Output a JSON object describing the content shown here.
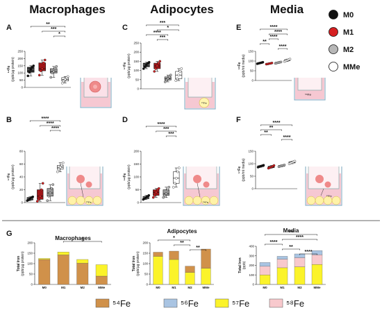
{
  "headers": {
    "col1": "Macrophages",
    "col2": "Adipocytes",
    "col3": "Media"
  },
  "panel_labels": [
    "A",
    "B",
    "C",
    "D",
    "E",
    "F",
    "G"
  ],
  "legend": {
    "items": [
      {
        "label": "M0",
        "color": "#111111"
      },
      {
        "label": "M1",
        "color": "#d62021"
      },
      {
        "label": "M2",
        "color": "#b7b7b7"
      },
      {
        "label": "MMe",
        "color": "#ffffff"
      }
    ]
  },
  "isotope_legend": {
    "items": [
      {
        "label": "⁵⁴Fe",
        "color": "#d0914a"
      },
      {
        "label": "⁵⁶Fe",
        "color": "#a9c4e2"
      },
      {
        "label": "⁵⁷Fe",
        "color": "#fbf32a"
      },
      {
        "label": "⁵⁸Fe",
        "color": "#f8c9cd"
      }
    ]
  },
  "schematic_labels": {
    "e_label": "⁵⁸Fe",
    "b_label": "⁵⁷Fe",
    "c_label": "⁵⁷Fe",
    "d_label": "⁵⁴Fe",
    "f_label": "⁵⁷Fe"
  },
  "chart_data": [
    {
      "id": "A",
      "type": "box",
      "ylabel": "⁵⁴Fe\n(ppb/µg protein)",
      "ylim": [
        0,
        250
      ],
      "yticks": [
        0,
        50,
        100,
        150,
        200,
        250
      ],
      "categories": [
        "M0",
        "M1",
        "M2",
        "MMe"
      ],
      "boxes": [
        {
          "min": 80,
          "q1": 105,
          "median": 125,
          "q3": 140,
          "max": 150,
          "color": "#111111"
        },
        {
          "min": 85,
          "q1": 115,
          "median": 130,
          "q3": 170,
          "max": 190,
          "color": "#d62021"
        },
        {
          "min": 70,
          "q1": 100,
          "median": 110,
          "q3": 130,
          "max": 145,
          "color": "#b7b7b7"
        },
        {
          "min": 30,
          "q1": 45,
          "median": 55,
          "q3": 68,
          "max": 75,
          "color": "#ffffff"
        }
      ],
      "significance": [
        {
          "from": 0,
          "to": 3,
          "label": "**"
        },
        {
          "from": 1,
          "to": 3,
          "label": "***"
        },
        {
          "from": 2,
          "to": 3,
          "label": "*"
        }
      ]
    },
    {
      "id": "B",
      "type": "box",
      "ylabel": "⁵⁷Fe\n(ppb/µg protein)",
      "ylim": [
        0,
        80
      ],
      "yticks": [
        0,
        20,
        40,
        60,
        80
      ],
      "categories": [
        "M0",
        "M1",
        "M2",
        "MMe"
      ],
      "boxes": [
        {
          "min": 3,
          "q1": 4,
          "median": 6,
          "q3": 8,
          "max": 9,
          "color": "#111111"
        },
        {
          "min": 2,
          "q1": 5,
          "median": 10,
          "q3": 20,
          "max": 30,
          "color": "#d62021"
        },
        {
          "min": 3,
          "q1": 10,
          "median": 15,
          "q3": 22,
          "max": 28,
          "color": "#b7b7b7"
        },
        {
          "min": 48,
          "q1": 52,
          "median": 55,
          "q3": 58,
          "max": 62,
          "color": "#ffffff"
        }
      ],
      "significance": [
        {
          "from": 0,
          "to": 3,
          "label": "****"
        },
        {
          "from": 1,
          "to": 3,
          "label": "****"
        },
        {
          "from": 2,
          "to": 3,
          "label": "****"
        }
      ]
    },
    {
      "id": "C",
      "type": "box",
      "ylabel": "⁵⁷Fe\n(ppb/µg protein)",
      "ylim": [
        0,
        250
      ],
      "yticks": [
        0,
        50,
        100,
        150,
        200,
        250
      ],
      "categories": [
        "M0",
        "M1",
        "M2",
        "MMe"
      ],
      "boxes": [
        {
          "min": 110,
          "q1": 120,
          "median": 130,
          "q3": 140,
          "max": 145,
          "color": "#111111"
        },
        {
          "min": 95,
          "q1": 110,
          "median": 125,
          "q3": 140,
          "max": 150,
          "color": "#d62021"
        },
        {
          "min": 38,
          "q1": 48,
          "median": 55,
          "q3": 65,
          "max": 75,
          "color": "#b7b7b7"
        },
        {
          "min": 45,
          "q1": 55,
          "median": 75,
          "q3": 95,
          "max": 110,
          "color": "#ffffff"
        }
      ],
      "significance": [
        {
          "from": 0,
          "to": 3,
          "label": "***"
        },
        {
          "from": 1,
          "to": 3,
          "label": "*"
        },
        {
          "from": 0,
          "to": 2,
          "label": "****"
        },
        {
          "from": 1,
          "to": 2,
          "label": "***"
        }
      ]
    },
    {
      "id": "D",
      "type": "box",
      "ylabel": "⁵⁴Fe\n(ppb/µg protein)",
      "ylim": [
        0,
        200
      ],
      "yticks": [
        0,
        50,
        100,
        150,
        200
      ],
      "categories": [
        "M0",
        "M1",
        "M2",
        "MMe"
      ],
      "boxes": [
        {
          "min": 12,
          "q1": 15,
          "median": 20,
          "q3": 24,
          "max": 28,
          "color": "#111111"
        },
        {
          "min": 20,
          "q1": 28,
          "median": 40,
          "q3": 50,
          "max": 55,
          "color": "#d62021"
        },
        {
          "min": 20,
          "q1": 28,
          "median": 35,
          "q3": 50,
          "max": 60,
          "color": "#b7b7b7"
        },
        {
          "min": 60,
          "q1": 75,
          "median": 95,
          "q3": 120,
          "max": 135,
          "color": "#ffffff"
        }
      ],
      "significance": [
        {
          "from": 0,
          "to": 3,
          "label": "****"
        },
        {
          "from": 1,
          "to": 3,
          "label": "***"
        },
        {
          "from": 2,
          "to": 3,
          "label": "***"
        }
      ]
    },
    {
      "id": "E",
      "type": "box",
      "ylabel": "⁵⁸Fe\n(ppb/ml media)",
      "ylim": [
        0,
        150
      ],
      "yticks": [
        0,
        50,
        100,
        150
      ],
      "categories": [
        "M0",
        "M1",
        "M2",
        "MMe"
      ],
      "boxes": [
        {
          "min": 86,
          "q1": 88,
          "median": 90,
          "q3": 92,
          "max": 94,
          "color": "#111111"
        },
        {
          "min": 84,
          "q1": 85,
          "median": 87,
          "q3": 88,
          "max": 90,
          "color": "#d62021"
        },
        {
          "min": 88,
          "q1": 90,
          "median": 92,
          "q3": 94,
          "max": 95,
          "color": "#b7b7b7"
        },
        {
          "min": 98,
          "q1": 101,
          "median": 104,
          "q3": 107,
          "max": 110,
          "color": "#ffffff"
        }
      ],
      "significance": [
        {
          "from": 0,
          "to": 3,
          "label": "****"
        },
        {
          "from": 1,
          "to": 3,
          "label": "****"
        },
        {
          "from": 1,
          "to": 2,
          "label": "****"
        },
        {
          "from": 0,
          "to": 1,
          "label": "**"
        },
        {
          "from": 2,
          "to": 3,
          "label": "****"
        }
      ]
    },
    {
      "id": "F",
      "type": "box",
      "ylabel": "⁵⁷Fe\n(ppb/ml media)",
      "ylim": [
        0,
        150
      ],
      "yticks": [
        0,
        50,
        100,
        150
      ],
      "categories": [
        "M0",
        "M1",
        "M2",
        "MMe"
      ],
      "boxes": [
        {
          "min": 86,
          "q1": 88,
          "median": 90,
          "q3": 92,
          "max": 94,
          "color": "#111111"
        },
        {
          "min": 82,
          "q1": 84,
          "median": 87,
          "q3": 90,
          "max": 93,
          "color": "#d62021"
        },
        {
          "min": 88,
          "q1": 90,
          "median": 92,
          "q3": 93,
          "max": 95,
          "color": "#b7b7b7"
        },
        {
          "min": 100,
          "q1": 103,
          "median": 105,
          "q3": 108,
          "max": 110,
          "color": "#ffffff"
        }
      ],
      "significance": [
        {
          "from": 0,
          "to": 3,
          "label": "****"
        },
        {
          "from": 0,
          "to": 2,
          "label": "**"
        },
        {
          "from": 0,
          "to": 1,
          "label": "**"
        },
        {
          "from": 2,
          "to": 3,
          "label": "****"
        }
      ]
    },
    {
      "id": "G1",
      "type": "bar",
      "stacked": true,
      "title": "Macrophages",
      "ylabel": "Total Iron\n(ppb/µg protein)",
      "ylim": [
        0,
        200
      ],
      "yticks": [
        0,
        50,
        100,
        150,
        200
      ],
      "categories": [
        "M0",
        "M1",
        "M2",
        "MMe"
      ],
      "series": [
        {
          "iso": "54",
          "color": "#d0914a",
          "values": [
            120,
            142,
            102,
            40
          ]
        },
        {
          "iso": "57",
          "color": "#fbf32a",
          "values": [
            5,
            14,
            18,
            55
          ]
        }
      ],
      "significance": [
        {
          "from": 1,
          "to": 3,
          "label": "*"
        }
      ]
    },
    {
      "id": "G2",
      "type": "bar",
      "stacked": true,
      "title": "Adipocytes",
      "ylabel": "Total Iron\n(ppb/µg protein)",
      "ylim": [
        0,
        200
      ],
      "yticks": [
        0,
        50,
        100,
        150,
        200
      ],
      "categories": [
        "M0",
        "M1",
        "M2",
        "MMe"
      ],
      "series": [
        {
          "iso": "57",
          "color": "#fbf32a",
          "values": [
            135,
            120,
            58,
            78
          ]
        },
        {
          "iso": "54",
          "color": "#d0914a",
          "values": [
            20,
            40,
            30,
            92
          ]
        }
      ],
      "significance": [
        {
          "from": 0,
          "to": 2,
          "label": "*"
        },
        {
          "from": 1,
          "to": 2,
          "label": "**"
        },
        {
          "from": 2,
          "to": 3,
          "label": "**"
        }
      ]
    },
    {
      "id": "G3",
      "type": "bar",
      "stacked": true,
      "title": "Media",
      "ylabel": "Total Iron\n(ppb)",
      "ylim": [
        0,
        400
      ],
      "yticks": [
        0,
        100,
        200,
        300,
        400
      ],
      "categories": [
        "M0",
        "M1",
        "M2",
        "MMe"
      ],
      "series": [
        {
          "iso": "57",
          "color": "#fbf32a",
          "values": [
            100,
            175,
            185,
            210
          ]
        },
        {
          "iso": "58",
          "color": "#f8c9cd",
          "values": [
            90,
            90,
            95,
            100
          ]
        },
        {
          "iso": "56",
          "color": "#a9c4e2",
          "values": [
            40,
            30,
            40,
            45
          ]
        }
      ],
      "significance": [
        {
          "from": 0,
          "to": 3,
          "label": "***"
        },
        {
          "from": 1,
          "to": 3,
          "label": "****"
        },
        {
          "from": 0,
          "to": 1,
          "label": "****"
        },
        {
          "from": 1,
          "to": 2,
          "label": "**"
        },
        {
          "from": 2,
          "to": 3,
          "label": "****"
        }
      ]
    }
  ]
}
